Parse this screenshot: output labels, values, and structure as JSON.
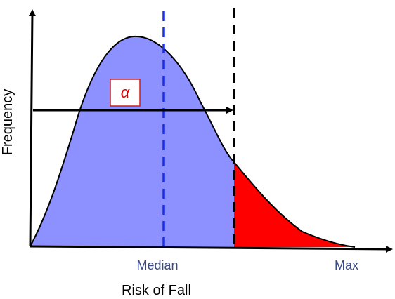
{
  "labels": {
    "y_axis": "Frequency",
    "x_axis": "Risk of Fall",
    "median": "Median",
    "max": "Max",
    "alpha": "α"
  },
  "colors": {
    "body_fill": "#8c91ff",
    "tail_fill": "#ff0000",
    "median_line": "#1c2ee0",
    "threshold_line": "#000000",
    "tick_label": "#3a4a86",
    "alpha_text": "#e00000",
    "alpha_border": "#cc1e1e"
  }
}
